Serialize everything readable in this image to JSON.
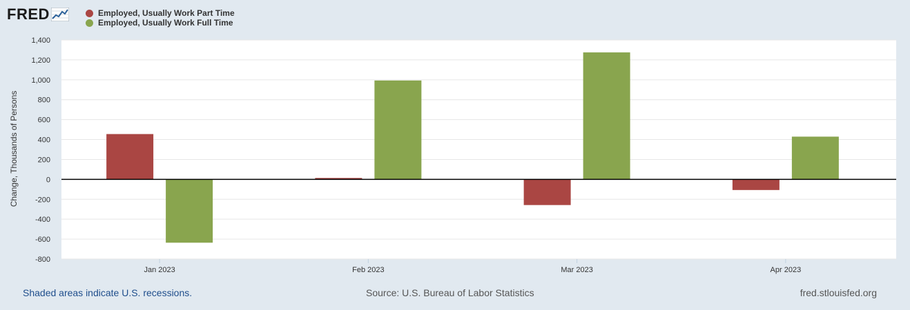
{
  "brand": {
    "logo_text": "FRED"
  },
  "colors": {
    "part_time": "#aa4643",
    "full_time": "#89a54e",
    "background": "#e1e9f0",
    "plot_bg": "#ffffff"
  },
  "chart_data": {
    "type": "bar",
    "title": "",
    "categories": [
      "Jan 2023",
      "Feb 2023",
      "Mar 2023",
      "Apr 2023"
    ],
    "series": [
      {
        "name": "Employed, Usually Work Part Time",
        "color": "#aa4643",
        "values": [
          455,
          14,
          -258,
          -107
        ]
      },
      {
        "name": "Employed, Usually Work Full Time",
        "color": "#89a54e",
        "values": [
          -636,
          993,
          1275,
          429
        ]
      }
    ],
    "xlabel": "",
    "ylabel": "Change, Thousands of Persons",
    "ylim": [
      -800,
      1400
    ],
    "yticks": [
      1400,
      1200,
      1000,
      800,
      600,
      400,
      200,
      0,
      -200,
      -400,
      -600,
      -800
    ],
    "ytick_labels": [
      "1,400",
      "1,200",
      "1,000",
      "800",
      "600",
      "400",
      "200",
      "0",
      "-200",
      "-400",
      "-600",
      "-800"
    ],
    "grid": true
  },
  "footer": {
    "recessions_note": "Shaded areas indicate U.S. recessions.",
    "source": "Source: U.S. Bureau of Labor Statistics",
    "site": "fred.stlouisfed.org"
  }
}
